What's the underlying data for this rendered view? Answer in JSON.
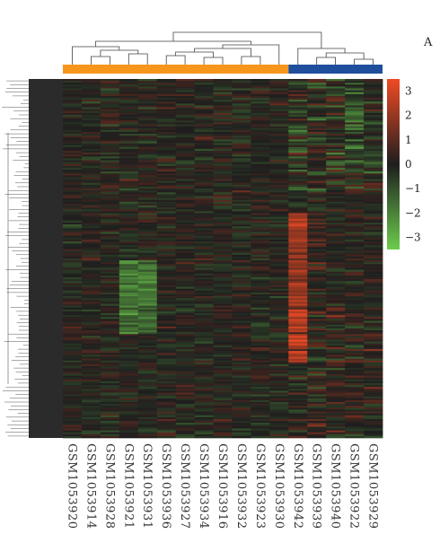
{
  "panel_label": "A",
  "chart_data": {
    "type": "heatmap",
    "columns": [
      "GSM1053920",
      "GSM1053914",
      "GSM1053928",
      "GSM1053921",
      "GSM1053931",
      "GSM1053936",
      "GSM1053927",
      "GSM1053934",
      "GSM1053916",
      "GSM1053932",
      "GSM1053923",
      "GSM1053930",
      "GSM1053942",
      "GSM1053939",
      "GSM1053940",
      "GSM1053922",
      "GSM1053929"
    ],
    "groups": [
      {
        "color": "#f7961d",
        "count": 12
      },
      {
        "color": "#1f4e9c",
        "count": 5
      }
    ],
    "color_scale": {
      "min": -3.5,
      "max": 3.5,
      "ticks": [
        3,
        2,
        1,
        0,
        -1,
        -2,
        -3
      ],
      "low_color": "#6ccc4d",
      "mid_color": "#1e1e1e",
      "high_color": "#f04a24"
    },
    "row_dendrogram": true,
    "column_dendrogram": true
  }
}
